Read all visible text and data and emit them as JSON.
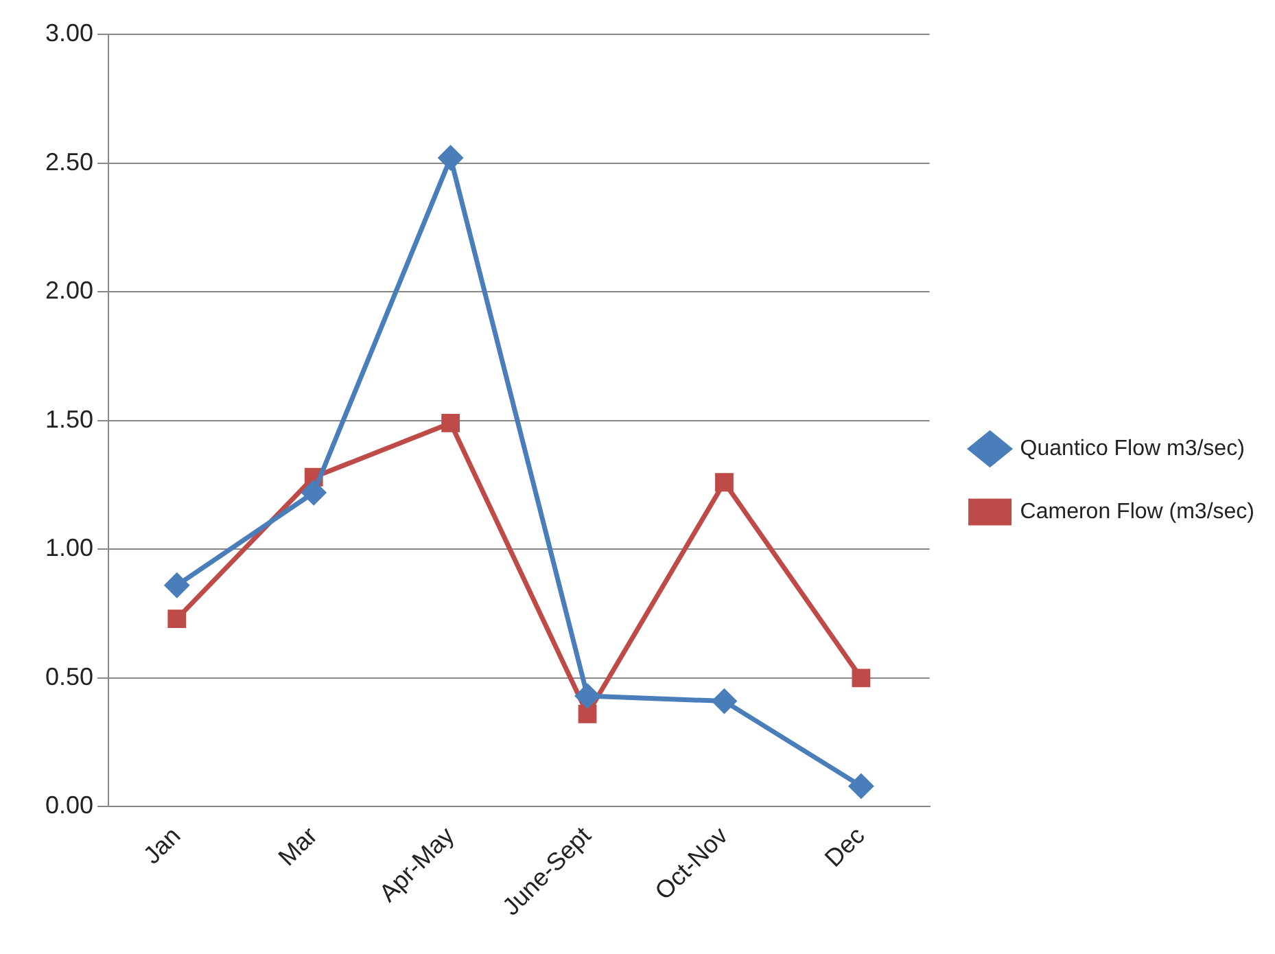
{
  "chart_data": {
    "type": "line",
    "categories": [
      "Jan",
      "Mar",
      "Apr-May",
      "June-Sept",
      "Oct-Nov",
      "Dec"
    ],
    "series": [
      {
        "name": "Quantico Flow m3/sec)",
        "color": "#4a7ebb",
        "marker": "diamond",
        "values": [
          0.86,
          1.22,
          2.52,
          0.43,
          0.41,
          0.08
        ]
      },
      {
        "name": "Cameron Flow (m3/sec)",
        "color": "#be4b48",
        "marker": "square",
        "values": [
          0.73,
          1.28,
          1.49,
          0.36,
          1.26,
          0.5
        ]
      }
    ],
    "ylim": [
      0,
      3
    ],
    "yticks": [
      {
        "value": 0,
        "label": "0.00"
      },
      {
        "value": 0.5,
        "label": "0.50"
      },
      {
        "value": 1,
        "label": "1.00"
      },
      {
        "value": 1.5,
        "label": "1.50"
      },
      {
        "value": 2,
        "label": "2.00"
      },
      {
        "value": 2.5,
        "label": "2.50"
      },
      {
        "value": 3,
        "label": "3.00"
      }
    ],
    "grid": "y",
    "legend": "right",
    "line_style": "solid"
  }
}
